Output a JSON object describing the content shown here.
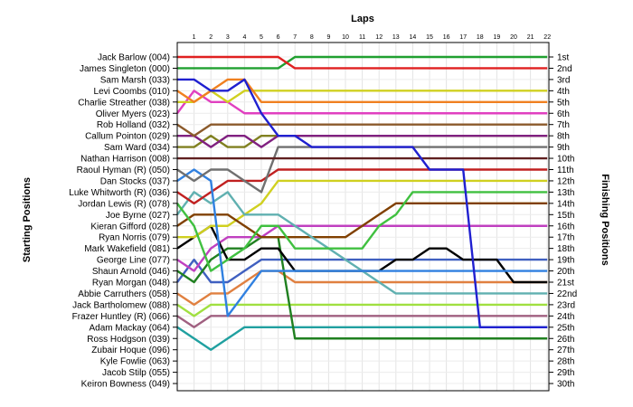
{
  "chart_data": {
    "type": "line",
    "title": "",
    "top_axis_label": "Laps",
    "left_axis_label": "Starting Positions",
    "right_axis_label": "Finishing Positions",
    "laps": [
      1,
      2,
      3,
      4,
      5,
      6,
      7,
      8,
      9,
      10,
      11,
      12,
      13,
      14,
      15,
      16,
      17,
      18,
      19,
      20,
      21,
      22
    ],
    "grid": true,
    "drivers": [
      {
        "name": "Jack Barlow (004)",
        "color": "#e02020",
        "positions": [
          1,
          1,
          1,
          1,
          1,
          1,
          1,
          2,
          2,
          2,
          2,
          2,
          2,
          2,
          2,
          2,
          2,
          2,
          2,
          2,
          2,
          2,
          2
        ]
      },
      {
        "name": "James Singleton (000)",
        "color": "#20a030",
        "positions": [
          2,
          2,
          2,
          2,
          2,
          2,
          2,
          1,
          1,
          1,
          1,
          1,
          1,
          1,
          1,
          1,
          1,
          1,
          1,
          1,
          1,
          1,
          1
        ]
      },
      {
        "name": "Sam Marsh (033)",
        "color": "#2020d0",
        "positions": [
          3,
          3,
          4,
          4,
          3,
          6,
          8,
          8,
          9,
          9,
          9,
          9,
          9,
          9,
          9,
          11,
          11,
          11,
          25,
          25,
          25,
          25,
          25
        ]
      },
      {
        "name": "Levi Coombs (010)",
        "color": "#f08020",
        "positions": [
          4,
          5,
          4,
          3,
          3,
          5,
          5,
          5,
          5,
          5,
          5,
          5,
          5,
          5,
          5,
          5,
          5,
          5,
          5,
          5,
          5,
          5,
          5
        ]
      },
      {
        "name": "Charlie Streather (038)",
        "color": "#d0d020",
        "positions": [
          5,
          5,
          4,
          5,
          4,
          4,
          4,
          4,
          4,
          4,
          4,
          4,
          4,
          4,
          4,
          4,
          4,
          4,
          4,
          4,
          4,
          4,
          4
        ]
      },
      {
        "name": "Oliver Myers (023)",
        "color": "#e040c0",
        "positions": [
          6,
          4,
          5,
          5,
          6,
          6,
          6,
          6,
          6,
          6,
          6,
          6,
          6,
          6,
          6,
          6,
          6,
          6,
          6,
          6,
          6,
          6,
          6
        ]
      },
      {
        "name": "Rob Holland (032)",
        "color": "#8b5a2b",
        "positions": [
          7,
          8,
          7,
          7,
          7,
          7,
          7,
          7,
          7,
          7,
          7,
          7,
          7,
          7,
          7,
          7,
          7,
          7,
          7,
          7,
          7,
          7,
          7
        ]
      },
      {
        "name": "Callum Pointon (029)",
        "color": "#802080",
        "positions": [
          8,
          8,
          9,
          8,
          8,
          9,
          8,
          8,
          8,
          8,
          8,
          8,
          8,
          8,
          8,
          8,
          8,
          8,
          8,
          8,
          8,
          8,
          8
        ]
      },
      {
        "name": "Sam Ward (034)",
        "color": "#808020",
        "positions": [
          9,
          9,
          8,
          9,
          9,
          8,
          8,
          8,
          8,
          8,
          8,
          8,
          8,
          8,
          8,
          8,
          8,
          8,
          8,
          8,
          8,
          8,
          8
        ]
      }
    ],
    "finishing_labels": [
      "1st",
      "2nd",
      "3rd",
      "4th",
      "5th",
      "6th",
      "7th",
      "8th",
      "9th",
      "10th",
      "11th",
      "12th",
      "13th",
      "14th",
      "15th",
      "16th",
      "17th",
      "18th",
      "19th",
      "20th",
      "21st",
      "22nd",
      "23rd",
      "24th",
      "25th",
      "26th",
      "27th",
      "28th",
      "29th",
      "30th"
    ],
    "starting_labels": [
      "Jack Barlow (004)",
      "James Singleton (000)",
      "Sam Marsh (033)",
      "Levi Coombs (010)",
      "Charlie Streather (038)",
      "Oliver Myers (023)",
      "Rob Holland (032)",
      "Callum Pointon (029)",
      "Sam Ward (034)",
      "Nathan Harrison (008)",
      "Raoul Hyman  (R) (050)",
      "Dan Stocks (037)",
      "Luke Whitworth (R) (036)",
      "Jordan Lewis (R) (078)",
      "Joe Byrne (027)",
      "Kieran Gifford (028)",
      "Ryan Norris (079)",
      "Mark Wakefield (081)",
      "George Line (077)",
      "Shaun Arnold (046)",
      "Ryan Morgan (048)",
      "Abbie Carruthers (058)",
      "Jack Bartholomew (088)",
      "Frazer Huntley (R) (066)",
      "Adam Mackay (064)",
      "Ross Hodgson (039)",
      "Zubair Hoque (096)",
      "Kyle Fowlie (063)",
      "Jacob Stilp (055)",
      "Keiron Bowness (049)"
    ],
    "extra_series": [
      {
        "color": "#602020",
        "positions": [
          10,
          10,
          10,
          10,
          10,
          10,
          10,
          10,
          10,
          10,
          10,
          10,
          10,
          10,
          10,
          10,
          10,
          10,
          10,
          10,
          10,
          10,
          10
        ]
      },
      {
        "color": "#707070",
        "positions": [
          11,
          12,
          11,
          11,
          12,
          13,
          9,
          9,
          9,
          9,
          9,
          9,
          9,
          9,
          9,
          9,
          9,
          9,
          9,
          9,
          9,
          9,
          9
        ]
      },
      {
        "color": "#3080e0",
        "positions": [
          12,
          11,
          12,
          24,
          22,
          20,
          20,
          20,
          20,
          20,
          20,
          20,
          20,
          20,
          20,
          20,
          20,
          20,
          20,
          20,
          20,
          20,
          20
        ]
      },
      {
        "color": "#c02020",
        "positions": [
          13,
          14,
          13,
          12,
          12,
          12,
          11,
          11,
          11,
          11,
          11,
          11,
          11,
          11,
          11,
          11,
          11,
          11,
          11,
          11,
          11,
          11,
          11
        ]
      },
      {
        "color": "#40c040",
        "positions": [
          14,
          16,
          20,
          19,
          18,
          16,
          16,
          18,
          18,
          18,
          18,
          18,
          16,
          15,
          13,
          13,
          13,
          13,
          13,
          13,
          13,
          13,
          13
        ]
      },
      {
        "color": "#60b0b0",
        "positions": [
          15,
          13,
          14,
          13,
          15,
          15,
          15,
          16,
          17,
          18,
          19,
          20,
          21,
          22,
          22,
          22,
          22,
          22,
          22,
          22,
          22,
          22,
          22
        ]
      },
      {
        "color": "#804000",
        "positions": [
          16,
          15,
          15,
          15,
          16,
          17,
          17,
          17,
          17,
          17,
          17,
          16,
          15,
          14,
          14,
          14,
          14,
          14,
          14,
          14,
          14,
          14,
          14
        ]
      },
      {
        "color": "#d0d020",
        "positions": [
          17,
          17,
          16,
          16,
          15,
          14,
          12,
          12,
          12,
          12,
          12,
          12,
          12,
          12,
          12,
          12,
          12,
          12,
          12,
          12,
          12,
          12,
          12
        ]
      },
      {
        "color": "#000000",
        "positions": [
          18,
          17,
          16,
          19,
          19,
          18,
          18,
          20,
          20,
          20,
          20,
          20,
          20,
          19,
          19,
          18,
          18,
          19,
          19,
          19,
          21,
          21,
          21
        ]
      },
      {
        "color": "#c040c0",
        "positions": [
          19,
          20,
          18,
          17,
          17,
          17,
          16,
          16,
          16,
          16,
          16,
          16,
          16,
          16,
          16,
          16,
          16,
          16,
          16,
          16,
          16,
          16,
          16
        ]
      },
      {
        "color": "#208020",
        "positions": [
          20,
          21,
          19,
          18,
          18,
          17,
          17,
          26,
          26,
          26,
          26,
          26,
          26,
          26,
          26,
          26,
          26,
          26,
          26,
          26,
          26,
          26,
          26
        ]
      },
      {
        "color": "#4060c0",
        "positions": [
          21,
          19,
          21,
          21,
          20,
          19,
          19,
          19,
          19,
          19,
          19,
          19,
          19,
          19,
          19,
          19,
          19,
          19,
          19,
          19,
          19,
          19,
          19
        ]
      },
      {
        "color": "#e08040",
        "positions": [
          22,
          23,
          22,
          22,
          21,
          20,
          20,
          21,
          21,
          21,
          21,
          21,
          21,
          21,
          21,
          21,
          21,
          21,
          21,
          21,
          21,
          21,
          21
        ]
      },
      {
        "color": "#a0e040",
        "positions": [
          23,
          24,
          23,
          23,
          23,
          23,
          23,
          23,
          23,
          23,
          23,
          23,
          23,
          23,
          23,
          23,
          23,
          23,
          23,
          23,
          23,
          23,
          23
        ]
      },
      {
        "color": "#a06080",
        "positions": [
          24,
          25,
          24,
          24,
          24,
          24,
          24,
          24,
          24,
          24,
          24,
          24,
          24,
          24,
          24,
          24,
          24,
          24,
          24,
          24,
          24,
          24,
          24
        ]
      },
      {
        "color": "#20a0a0",
        "positions": [
          25,
          26,
          27,
          26,
          25,
          25,
          25,
          25,
          25,
          25,
          25,
          25,
          25,
          25,
          25,
          25,
          25,
          25,
          25,
          25,
          25,
          25,
          25
        ]
      }
    ]
  }
}
